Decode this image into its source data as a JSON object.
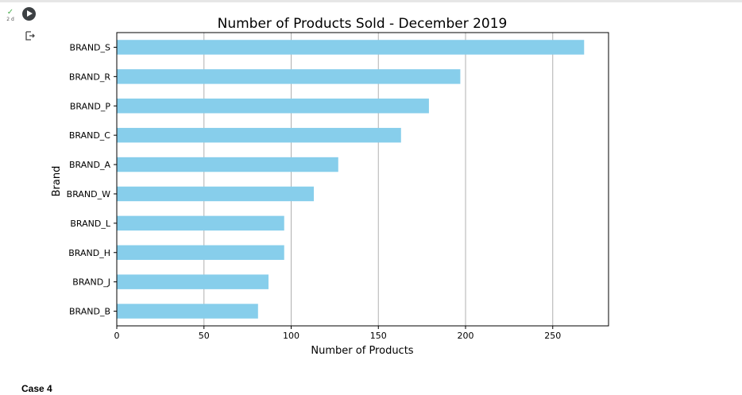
{
  "cell": {
    "status_icon": "check-icon",
    "execution_time": "2 d",
    "run_icon": "play-icon",
    "output_icon": "output-redirect-icon"
  },
  "footer": {
    "case_label": "Case 4"
  },
  "colors": {
    "bar": "#87ceeb",
    "grid": "#b0b0b0",
    "check": "#4caf50"
  },
  "chart_data": {
    "type": "bar",
    "orientation": "horizontal",
    "title": "Number of Products Sold - December 2019",
    "xlabel": "Number of Products",
    "ylabel": "Brand",
    "categories": [
      "BRAND_S",
      "BRAND_R",
      "BRAND_P",
      "BRAND_C",
      "BRAND_A",
      "BRAND_W",
      "BRAND_L",
      "BRAND_H",
      "BRAND_J",
      "BRAND_B"
    ],
    "values": [
      268,
      197,
      179,
      163,
      127,
      113,
      96,
      96,
      87,
      81
    ],
    "xlim": [
      0,
      282
    ],
    "xticks": [
      0,
      50,
      100,
      150,
      200,
      250
    ],
    "grid": "vertical",
    "legend": "none"
  }
}
